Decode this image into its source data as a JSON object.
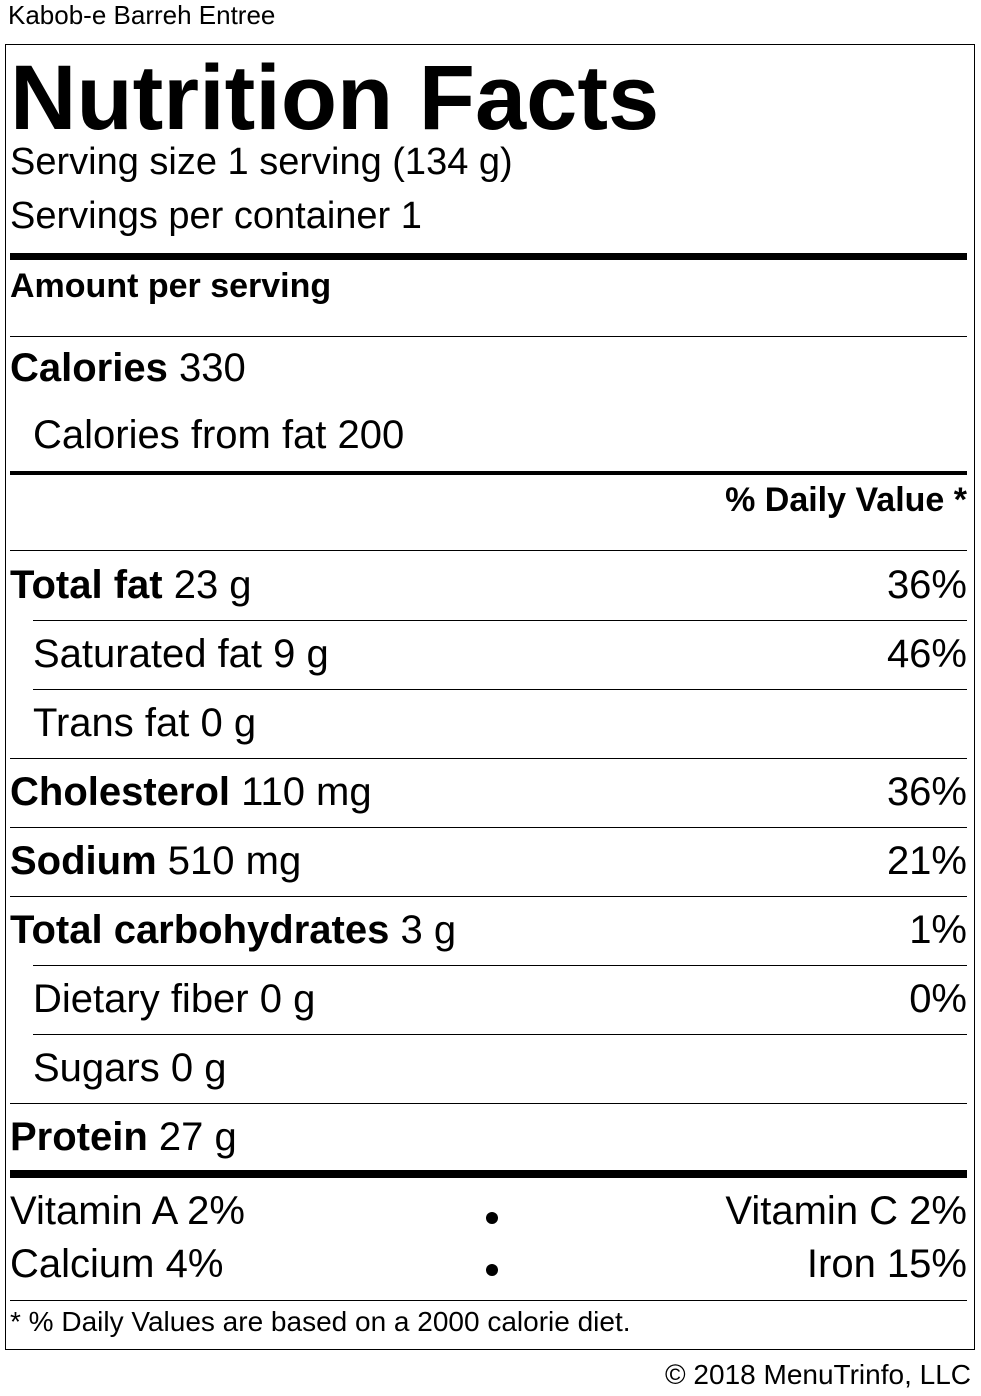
{
  "item_name": "Kabob-e Barreh Entree",
  "heading": "Nutrition Facts",
  "serving_size": "Serving size 1 serving (134 g)",
  "servings_per_container": "Servings per container 1",
  "amount_per_serving": "Amount per serving",
  "calories": {
    "label": "Calories",
    "value": "330"
  },
  "calories_from_fat": "Calories from fat 200",
  "daily_value_header": "% Daily Value *",
  "nutrients": [
    {
      "label": "Total fat",
      "amount": "23 g",
      "dv": "36%",
      "bold": true,
      "indent": false
    },
    {
      "label": "Saturated fat",
      "amount": "9 g",
      "dv": "46%",
      "bold": false,
      "indent": true
    },
    {
      "label": "Trans fat",
      "amount": "0 g",
      "dv": "",
      "bold": false,
      "indent": true
    },
    {
      "label": "Cholesterol",
      "amount": "110 mg",
      "dv": "36%",
      "bold": true,
      "indent": false
    },
    {
      "label": "Sodium",
      "amount": "510 mg",
      "dv": "21%",
      "bold": true,
      "indent": false
    },
    {
      "label": "Total carbohydrates",
      "amount": "3 g",
      "dv": "1%",
      "bold": true,
      "indent": false
    },
    {
      "label": "Dietary fiber",
      "amount": "0 g",
      "dv": "0%",
      "bold": false,
      "indent": true
    },
    {
      "label": "Sugars",
      "amount": "0 g",
      "dv": "",
      "bold": false,
      "indent": true
    },
    {
      "label": "Protein",
      "amount": "27 g",
      "dv": "",
      "bold": true,
      "indent": false
    }
  ],
  "vitamins": [
    {
      "left": "Vitamin A 2%",
      "right": "Vitamin C 2%"
    },
    {
      "left": "Calcium 4%",
      "right": "Iron 15%"
    }
  ],
  "footnote": "* % Daily Values are based on a 2000 calorie diet.",
  "copyright": "© 2018 MenuTrinfo, LLC"
}
